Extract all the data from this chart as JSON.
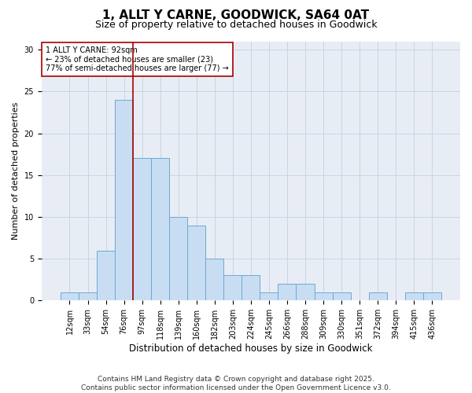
{
  "title1": "1, ALLT Y CARNE, GOODWICK, SA64 0AT",
  "title2": "Size of property relative to detached houses in Goodwick",
  "xlabel": "Distribution of detached houses by size in Goodwick",
  "ylabel": "Number of detached properties",
  "categories": [
    "12sqm",
    "33sqm",
    "54sqm",
    "76sqm",
    "97sqm",
    "118sqm",
    "139sqm",
    "160sqm",
    "182sqm",
    "203sqm",
    "224sqm",
    "245sqm",
    "266sqm",
    "288sqm",
    "309sqm",
    "330sqm",
    "351sqm",
    "372sqm",
    "394sqm",
    "415sqm",
    "436sqm"
  ],
  "values": [
    1,
    1,
    6,
    24,
    17,
    17,
    10,
    9,
    5,
    3,
    3,
    1,
    2,
    2,
    1,
    1,
    0,
    1,
    0,
    1,
    1
  ],
  "bar_color": "#c9ddf2",
  "bar_edge_color": "#6aaad4",
  "vline_x": 3.5,
  "vline_color": "#aa0000",
  "annotation_text": "1 ALLT Y CARNE: 92sqm\n← 23% of detached houses are smaller (23)\n77% of semi-detached houses are larger (77) →",
  "annotation_box_color": "#ffffff",
  "annotation_box_edge": "#aa0000",
  "ylim": [
    0,
    31
  ],
  "yticks": [
    0,
    5,
    10,
    15,
    20,
    25,
    30
  ],
  "grid_color": "#c8d4e8",
  "background_color": "#e8edf5",
  "footer": "Contains HM Land Registry data © Crown copyright and database right 2025.\nContains public sector information licensed under the Open Government Licence v3.0.",
  "title1_fontsize": 11,
  "title2_fontsize": 9,
  "xlabel_fontsize": 8.5,
  "ylabel_fontsize": 8,
  "tick_fontsize": 7,
  "annotation_fontsize": 7,
  "footer_fontsize": 6.5
}
